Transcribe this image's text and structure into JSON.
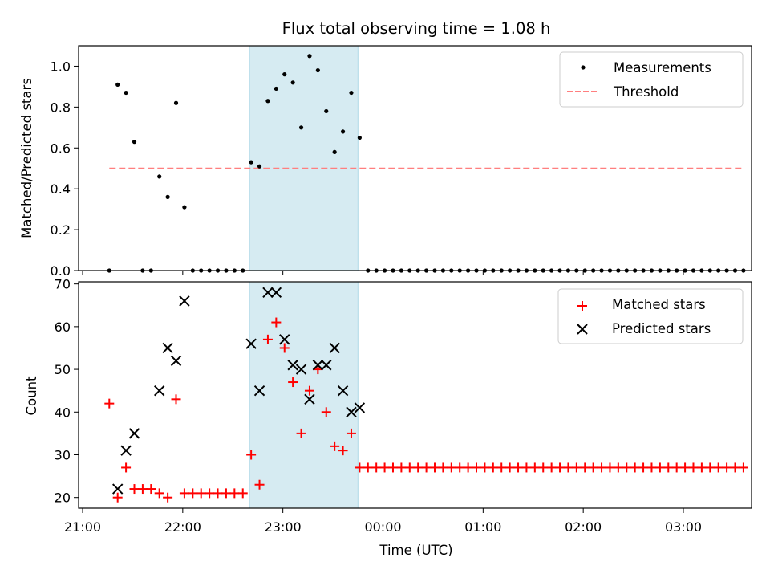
{
  "chart_data": [
    {
      "type": "scatter",
      "title": "Flux total observing time = 1.08 h",
      "xlabel": "",
      "ylabel": "Matched/Predicted stars",
      "xlim": [
        "2000-01-01T20:55",
        "2000-01-02T03:40"
      ],
      "ylim": [
        0,
        1.1
      ],
      "yticks": [
        0.0,
        0.2,
        0.4,
        0.6,
        0.8,
        1.0
      ],
      "yticklabels": [
        "0.0",
        "0.2",
        "0.4",
        "0.6",
        "0.8",
        "1.0"
      ],
      "highlight_span": [
        "22:40",
        "23:45"
      ],
      "highlight_color": "#add8e6",
      "legend_position": "upper right",
      "series": [
        {
          "name": "Measurements",
          "marker": "dot",
          "color": "#000000",
          "x": [
            "21:16",
            "21:21",
            "21:26",
            "21:31",
            "21:36",
            "21:41",
            "21:46",
            "21:51",
            "21:56",
            "22:01",
            "22:06",
            "22:11",
            "22:16",
            "22:21",
            "22:26",
            "22:31",
            "22:36",
            "22:41",
            "22:46",
            "22:51",
            "22:56",
            "23:01",
            "23:06",
            "23:11",
            "23:16",
            "23:21",
            "23:26",
            "23:31",
            "23:36",
            "23:41",
            "23:46",
            "23:51",
            "23:56",
            "00:01",
            "00:06",
            "00:11",
            "00:16",
            "00:21",
            "00:26",
            "00:31",
            "00:36",
            "00:41",
            "00:46",
            "00:51",
            "00:56",
            "01:01",
            "01:06",
            "01:11",
            "01:16",
            "01:21",
            "01:26",
            "01:31",
            "01:36",
            "01:41",
            "01:46",
            "01:51",
            "01:56",
            "02:01",
            "02:06",
            "02:11",
            "02:16",
            "02:21",
            "02:26",
            "02:31",
            "02:36",
            "02:41",
            "02:46",
            "02:51",
            "02:56",
            "03:01",
            "03:06",
            "03:11",
            "03:16",
            "03:21",
            "03:26",
            "03:31",
            "03:36"
          ],
          "y": [
            0,
            0.91,
            0.87,
            0.63,
            0,
            0,
            0.46,
            0.36,
            0.82,
            0.31,
            0,
            0,
            0,
            0,
            0,
            0,
            0,
            0.53,
            0.51,
            0.83,
            0.89,
            0.96,
            0.92,
            0.7,
            1.05,
            0.98,
            0.78,
            0.58,
            0.68,
            0.87,
            0.65,
            0,
            0,
            0,
            0,
            0,
            0,
            0,
            0,
            0,
            0,
            0,
            0,
            0,
            0,
            0,
            0,
            0,
            0,
            0,
            0,
            0,
            0,
            0,
            0,
            0,
            0,
            0,
            0,
            0,
            0,
            0,
            0,
            0,
            0,
            0,
            0,
            0,
            0,
            0,
            0,
            0,
            0,
            0,
            0,
            0,
            0
          ]
        },
        {
          "name": "Threshold",
          "style": "dashed",
          "color": "#ff7f7f",
          "x": [
            "21:16",
            "03:36"
          ],
          "y": [
            0.5,
            0.5
          ]
        }
      ]
    },
    {
      "type": "scatter",
      "title": "",
      "xlabel": "Time (UTC)",
      "ylabel": "Count",
      "xlim": [
        "2000-01-01T20:55",
        "2000-01-02T03:40"
      ],
      "ylim": [
        17.5,
        70.5
      ],
      "yticks": [
        20,
        30,
        40,
        50,
        60,
        70
      ],
      "yticklabels": [
        "20",
        "30",
        "40",
        "50",
        "60",
        "70"
      ],
      "xticks": [
        "21:00",
        "22:00",
        "23:00",
        "00:00",
        "01:00",
        "02:00",
        "03:00"
      ],
      "xticklabels": [
        "21:00",
        "22:00",
        "23:00",
        "00:00",
        "01:00",
        "02:00",
        "03:00"
      ],
      "highlight_span": [
        "22:40",
        "23:45"
      ],
      "highlight_color": "#add8e6",
      "legend_position": "upper right",
      "series": [
        {
          "name": "Matched stars",
          "marker": "plus",
          "color": "#ff0000",
          "x": [
            "21:16",
            "21:21",
            "21:26",
            "21:31",
            "21:36",
            "21:41",
            "21:46",
            "21:51",
            "21:56",
            "22:01",
            "22:06",
            "22:11",
            "22:16",
            "22:21",
            "22:26",
            "22:31",
            "22:36",
            "22:41",
            "22:46",
            "22:51",
            "22:56",
            "23:01",
            "23:06",
            "23:11",
            "23:16",
            "23:21",
            "23:26",
            "23:31",
            "23:36",
            "23:41",
            "23:46",
            "23:51",
            "23:56",
            "00:01",
            "00:06",
            "00:11",
            "00:16",
            "00:21",
            "00:26",
            "00:31",
            "00:36",
            "00:41",
            "00:46",
            "00:51",
            "00:56",
            "01:01",
            "01:06",
            "01:11",
            "01:16",
            "01:21",
            "01:26",
            "01:31",
            "01:36",
            "01:41",
            "01:46",
            "01:51",
            "01:56",
            "02:01",
            "02:06",
            "02:11",
            "02:16",
            "02:21",
            "02:26",
            "02:31",
            "02:36",
            "02:41",
            "02:46",
            "02:51",
            "02:56",
            "03:01",
            "03:06",
            "03:11",
            "03:16",
            "03:21",
            "03:26",
            "03:31",
            "03:36"
          ],
          "y": [
            42,
            20,
            27,
            22,
            22,
            22,
            21,
            20,
            43,
            21,
            21,
            21,
            21,
            21,
            21,
            21,
            21,
            30,
            23,
            57,
            61,
            55,
            47,
            35,
            45,
            50,
            40,
            32,
            31,
            35,
            27,
            27,
            27,
            27,
            27,
            27,
            27,
            27,
            27,
            27,
            27,
            27,
            27,
            27,
            27,
            27,
            27,
            27,
            27,
            27,
            27,
            27,
            27,
            27,
            27,
            27,
            27,
            27,
            27,
            27,
            27,
            27,
            27,
            27,
            27,
            27,
            27,
            27,
            27,
            27,
            27,
            27,
            27,
            27,
            27,
            27,
            27
          ]
        },
        {
          "name": "Predicted stars",
          "marker": "x",
          "color": "#000000",
          "x": [
            "21:21",
            "21:26",
            "21:31",
            "21:46",
            "21:51",
            "21:56",
            "22:01",
            "22:41",
            "22:46",
            "22:51",
            "22:56",
            "23:01",
            "23:06",
            "23:11",
            "23:16",
            "23:21",
            "23:26",
            "23:31",
            "23:36",
            "23:41",
            "23:46"
          ],
          "y": [
            22,
            31,
            35,
            45,
            55,
            52,
            66,
            56,
            45,
            68,
            68,
            57,
            51,
            50,
            43,
            51,
            51,
            55,
            45,
            40,
            41
          ]
        }
      ]
    }
  ]
}
